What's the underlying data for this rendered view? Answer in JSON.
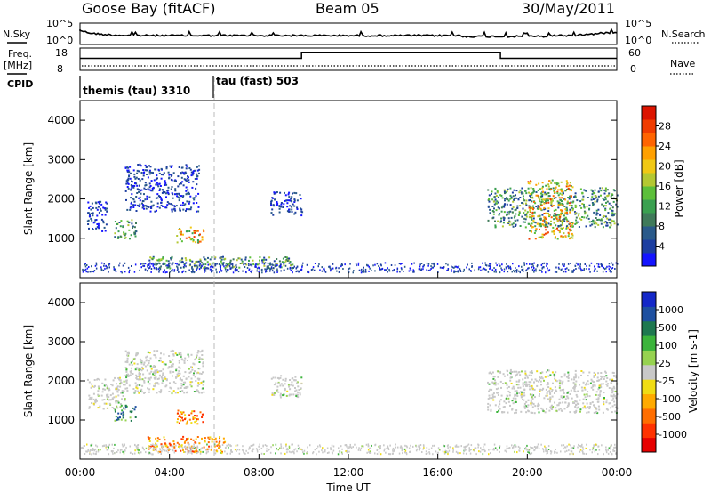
{
  "header": {
    "station": "Goose Bay (fitACF)",
    "beam": "Beam 05",
    "date": "30/May/2011"
  },
  "labels": {
    "nsky": "N.Sky",
    "nsearch": "N.Search",
    "freq": "Freq.",
    "mhz": "[MHz]",
    "nave": "Nave",
    "cpid": "CPID",
    "cp1": "themis (tau) 3310",
    "cp2": "tau (fast) 503"
  },
  "chart_data": [
    {
      "type": "line",
      "panel": "noise",
      "left_ticks": [
        "10^5",
        "10^0"
      ],
      "right_ticks": [
        "10^5",
        "10^0"
      ],
      "series": [
        {
          "name": "N.Sky",
          "style": "solid black line"
        },
        {
          "name": "N.Search",
          "style": "dotted"
        }
      ]
    },
    {
      "type": "line",
      "panel": "freq-nave",
      "left_ticks": [
        "18",
        "8"
      ],
      "right_ticks": [
        "60",
        "0"
      ],
      "series": [
        {
          "name": "Freq.",
          "x_hours": [
            0,
            9.9,
            9.9,
            18.8,
            18.8,
            24
          ],
          "values": [
            13.5,
            13.5,
            16.7,
            16.7,
            13.5,
            13.5
          ]
        },
        {
          "name": "Nave",
          "style": "dotted",
          "approx_value": 10
        }
      ]
    },
    {
      "type": "heatmap",
      "panel": "power",
      "ylabel": "Slant Range [km]",
      "yticks": [
        "1000",
        "2000",
        "3000",
        "4000"
      ],
      "colorbar_label": "Power [dB]",
      "colorbar_ticks": [
        "4",
        "8",
        "12",
        "16",
        "20",
        "24",
        "28"
      ],
      "colors": [
        "#1414ff",
        "#1c3ea0",
        "#2a5a8a",
        "#3f7a5a",
        "#3aa050",
        "#5cbf3a",
        "#b4c832",
        "#f0c814",
        "#ffa000",
        "#ff6400",
        "#f03c00",
        "#dc1400"
      ],
      "regions": [
        {
          "t_start": 0.3,
          "t_end": 1.2,
          "range_start": 1200,
          "range_end": 2000,
          "level": "low"
        },
        {
          "t_start": 1.5,
          "t_end": 2.5,
          "range_start": 1000,
          "range_end": 1500,
          "level": "mid"
        },
        {
          "t_start": 2.0,
          "t_end": 5.3,
          "range_start": 1700,
          "range_end": 2900,
          "level": "low"
        },
        {
          "t_start": 4.3,
          "t_end": 5.5,
          "range_start": 900,
          "range_end": 1300,
          "level": "high"
        },
        {
          "t_start": 3.0,
          "t_end": 9.5,
          "range_start": 250,
          "range_end": 550,
          "level": "mid"
        },
        {
          "t_start": 8.5,
          "t_end": 9.9,
          "range_start": 1600,
          "range_end": 2200,
          "level": "low"
        },
        {
          "t_start": 18.2,
          "t_end": 24.0,
          "range_start": 1300,
          "range_end": 2300,
          "level": "mid"
        },
        {
          "t_start": 20.0,
          "t_end": 22.0,
          "range_start": 1000,
          "range_end": 2500,
          "level": "high"
        }
      ]
    },
    {
      "type": "heatmap",
      "panel": "velocity",
      "xlabel": "Time UT",
      "ylabel": "Slant Range [km]",
      "xticks": [
        "00:00",
        "04:00",
        "08:00",
        "12:00",
        "16:00",
        "20:00",
        "00:00"
      ],
      "yticks": [
        "1000",
        "2000",
        "3000",
        "4000"
      ],
      "colorbar_label": "Velocity [m s-1]",
      "colorbar_ticks": [
        "1000",
        "500",
        "100",
        "25",
        "-25",
        "-100",
        "-500",
        "-1000"
      ],
      "colors": [
        "#1428c8",
        "#1e50a0",
        "#1e7850",
        "#3cb43c",
        "#96d250",
        "#c8c8c8",
        "#f0dc14",
        "#ffaa00",
        "#ff6e00",
        "#ff3200",
        "#e60000"
      ],
      "regions": [
        {
          "t_start": 0.3,
          "t_end": 2.0,
          "range_start": 1300,
          "range_end": 2100,
          "velocity": "near-zero"
        },
        {
          "t_start": 1.5,
          "t_end": 2.5,
          "range_start": 1000,
          "range_end": 1400,
          "velocity": "positive"
        },
        {
          "t_start": 2.0,
          "t_end": 5.5,
          "range_start": 1700,
          "range_end": 2800,
          "velocity": "near-zero"
        },
        {
          "t_start": 4.3,
          "t_end": 5.5,
          "range_start": 900,
          "range_end": 1300,
          "velocity": "negative"
        },
        {
          "t_start": 3.0,
          "t_end": 6.5,
          "range_start": 200,
          "range_end": 600,
          "velocity": "negative"
        },
        {
          "t_start": 8.5,
          "t_end": 9.9,
          "range_start": 1600,
          "range_end": 2200,
          "velocity": "near-zero"
        },
        {
          "t_start": 18.2,
          "t_end": 24.0,
          "range_start": 1200,
          "range_end": 2300,
          "velocity": "near-zero"
        }
      ]
    }
  ]
}
